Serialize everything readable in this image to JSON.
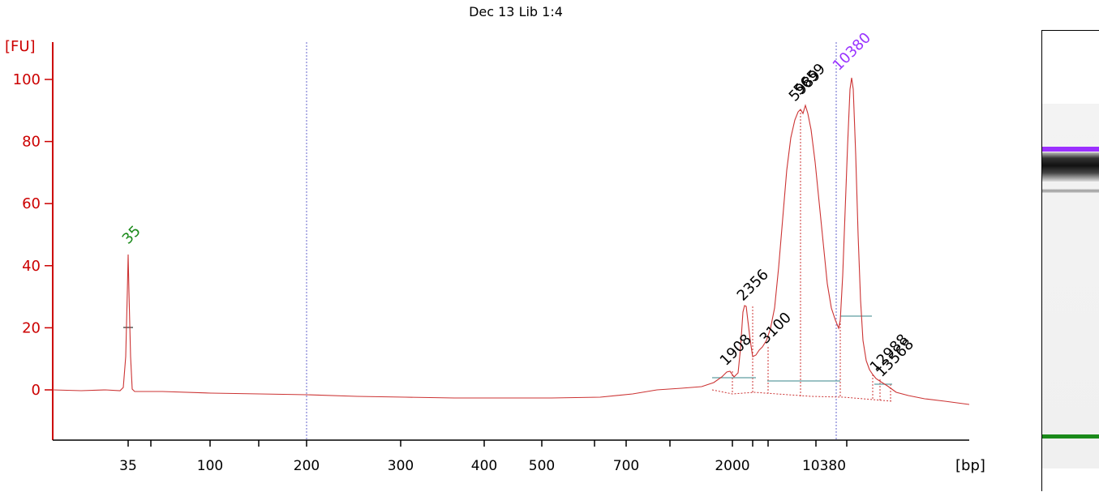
{
  "chart_data": {
    "type": "line",
    "title": "Dec 13 Lib 1:4",
    "ylabel": "[FU]",
    "xlabel": "[bp]",
    "ylim": [
      -15,
      110
    ],
    "y_ticks": [
      0,
      20,
      40,
      60,
      80,
      100
    ],
    "x_tick_labels": [
      "35",
      "",
      "100",
      "",
      "200",
      "300",
      "400",
      "500",
      "",
      "700",
      "",
      "2000",
      "",
      "",
      "10380",
      ""
    ],
    "x_scale": "electropherogram (nonlinear, ladder-calibrated)",
    "series": [
      {
        "x": [
          "35",
          "200",
          "500",
          "700",
          "1908",
          "2356",
          "3100",
          "5989",
          "10380",
          "12988"
        ],
        "y": [
          44,
          -1.5,
          -3,
          -2,
          6,
          26,
          15,
          91,
          101,
          5
        ]
      }
    ],
    "peak_labels": [
      {
        "text": "35",
        "color": "#1a8a1a",
        "y": 44
      },
      {
        "text": "1908",
        "color": "#000000",
        "y": 6
      },
      {
        "text": "2356",
        "color": "#000000",
        "y": 27
      },
      {
        "text": "3100",
        "color": "#000000",
        "y": 17
      },
      {
        "text": "5989",
        "color": "#000000",
        "y": 92
      },
      {
        "text": "5659",
        "color": "#000000",
        "y": 92
      },
      {
        "text": "10380",
        "color": "#9933ff",
        "y": 102
      },
      {
        "text": "12988",
        "color": "#000000",
        "y": 6
      },
      {
        "text": "13568",
        "color": "#000000",
        "y": 5
      }
    ],
    "colors": {
      "trace": "#cc3333",
      "axis": "#cc0000",
      "lower_marker": "#1a8a1a",
      "upper_marker": "#9933ff",
      "divider": "#6666cc"
    }
  },
  "gel": {
    "bands": [
      {
        "name": "upper-marker",
        "color": "#9b30ff"
      },
      {
        "name": "main",
        "color": "#222222"
      },
      {
        "name": "secondary",
        "color": "#999999"
      },
      {
        "name": "lower-marker",
        "color": "#1a8a1a"
      }
    ]
  }
}
